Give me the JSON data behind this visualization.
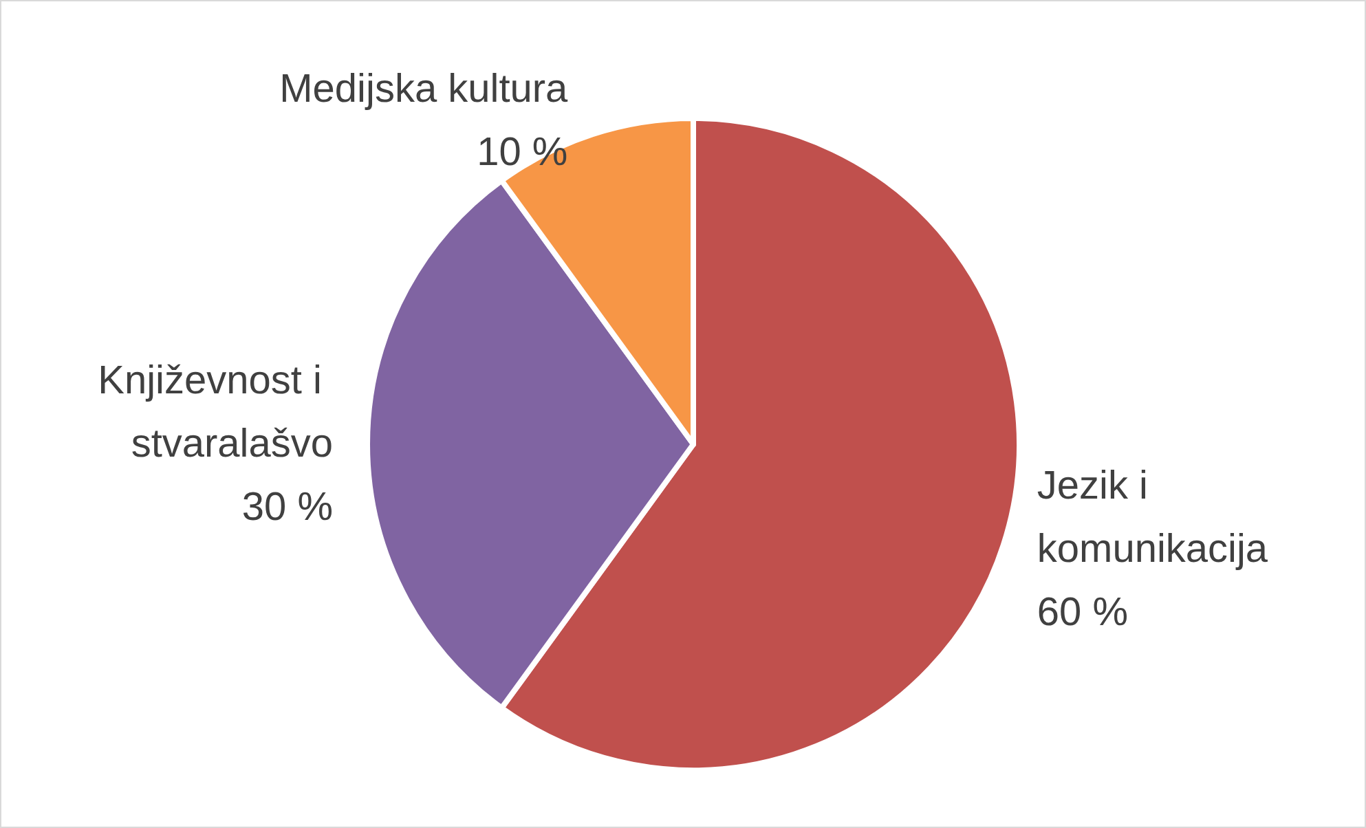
{
  "chart_data": {
    "type": "pie",
    "categories": [
      "Jezik i komunikacija",
      "Književnost i stvaralašvo",
      "Medijska kultura"
    ],
    "values": [
      60,
      30,
      10
    ],
    "value_labels": [
      "60 %",
      "30 %",
      "10 %"
    ],
    "colors": [
      "#c0504d",
      "#8064a2",
      "#f79646"
    ],
    "legend": false
  }
}
